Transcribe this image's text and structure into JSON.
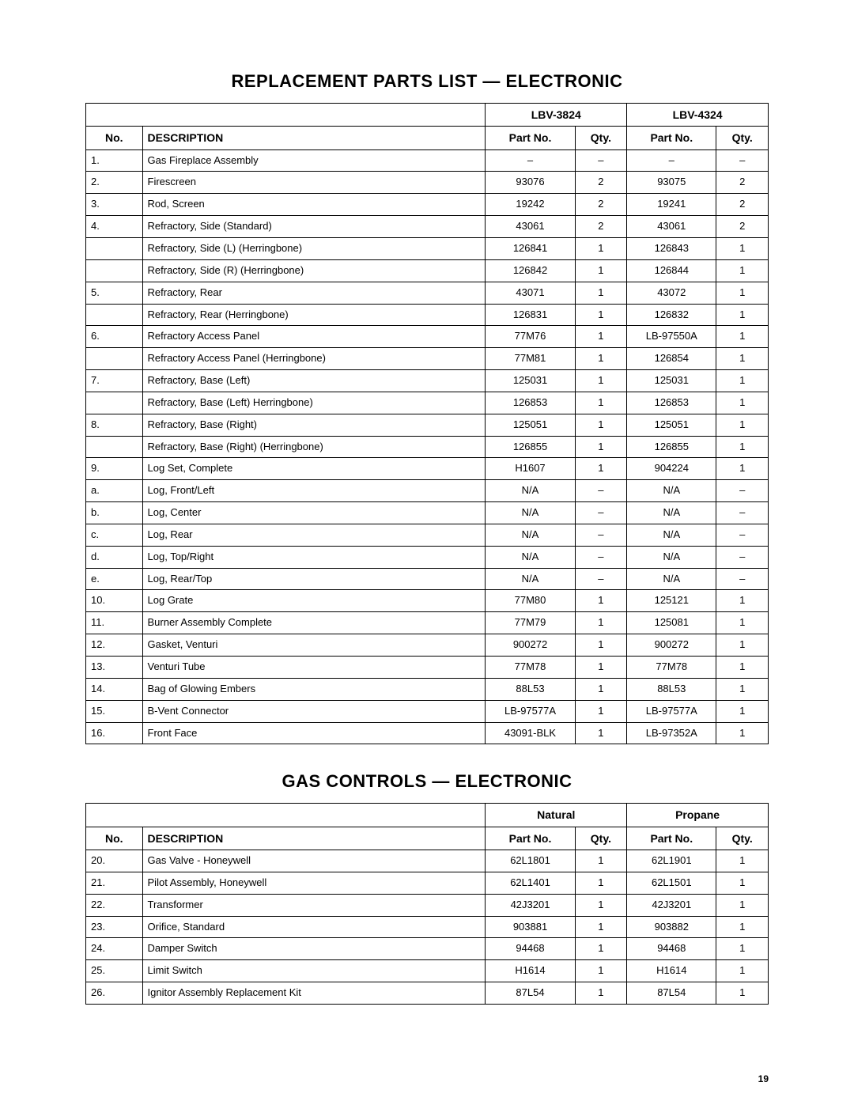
{
  "page_number": "19",
  "colors": {
    "text": "#000000",
    "background": "#ffffff",
    "border": "#000000"
  },
  "typography": {
    "heading_fontsize_pt": 16,
    "subhead_fontsize_pt": 10,
    "body_fontsize_pt": 9
  },
  "table1": {
    "title": "REPLACEMENT PARTS LIST — ELECTRONIC",
    "model_a": "LBV-3824",
    "model_b": "LBV-4324",
    "col_labels": {
      "no": "No.",
      "desc": "DESCRIPTION",
      "part": "Part No.",
      "qty": "Qty."
    },
    "rows": [
      {
        "no": "1.",
        "desc": "Gas Fireplace Assembly",
        "pa": "–",
        "qa": "–",
        "pb": "–",
        "qb": "–"
      },
      {
        "no": "2.",
        "desc": "Firescreen",
        "pa": "93076",
        "qa": "2",
        "pb": "93075",
        "qb": "2"
      },
      {
        "no": "3.",
        "desc": "Rod, Screen",
        "pa": "19242",
        "qa": "2",
        "pb": "19241",
        "qb": "2"
      },
      {
        "no": "4.",
        "desc": "Refractory, Side (Standard)",
        "pa": "43061",
        "qa": "2",
        "pb": "43061",
        "qb": "2"
      },
      {
        "no": "",
        "desc": "Refractory, Side (L) (Herringbone)",
        "pa": "126841",
        "qa": "1",
        "pb": "126843",
        "qb": "1"
      },
      {
        "no": "",
        "desc": "Refractory, Side (R) (Herringbone)",
        "pa": "126842",
        "qa": "1",
        "pb": "126844",
        "qb": "1"
      },
      {
        "no": "5.",
        "desc": "Refractory, Rear",
        "pa": "43071",
        "qa": "1",
        "pb": "43072",
        "qb": "1"
      },
      {
        "no": "",
        "desc": "Refractory, Rear (Herringbone)",
        "pa": "126831",
        "qa": "1",
        "pb": "126832",
        "qb": "1"
      },
      {
        "no": "6.",
        "desc": "Refractory Access Panel",
        "pa": "77M76",
        "qa": "1",
        "pb": "LB-97550A",
        "qb": "1"
      },
      {
        "no": "",
        "desc": "Refractory Access Panel (Herringbone)",
        "pa": "77M81",
        "qa": "1",
        "pb": "126854",
        "qb": "1"
      },
      {
        "no": "7.",
        "desc": "Refractory, Base (Left)",
        "pa": "125031",
        "qa": "1",
        "pb": "125031",
        "qb": "1"
      },
      {
        "no": "",
        "desc": "Refractory, Base (Left) Herringbone)",
        "pa": "126853",
        "qa": "1",
        "pb": "126853",
        "qb": "1"
      },
      {
        "no": "8.",
        "desc": "Refractory, Base (Right)",
        "pa": "125051",
        "qa": "1",
        "pb": "125051",
        "qb": "1"
      },
      {
        "no": "",
        "desc": "Refractory, Base (Right) (Herringbone)",
        "pa": "126855",
        "qa": "1",
        "pb": "126855",
        "qb": "1"
      },
      {
        "no": "9.",
        "desc": "Log Set, Complete",
        "pa": "H1607",
        "qa": "1",
        "pb": "904224",
        "qb": "1"
      },
      {
        "no": "a.",
        "desc": "Log, Front/Left",
        "pa": "N/A",
        "qa": "–",
        "pb": "N/A",
        "qb": "–"
      },
      {
        "no": "b.",
        "desc": "Log, Center",
        "pa": "N/A",
        "qa": "–",
        "pb": "N/A",
        "qb": "–"
      },
      {
        "no": "c.",
        "desc": "Log, Rear",
        "pa": "N/A",
        "qa": "–",
        "pb": "N/A",
        "qb": "–"
      },
      {
        "no": "d.",
        "desc": "Log, Top/Right",
        "pa": "N/A",
        "qa": "–",
        "pb": "N/A",
        "qb": "–"
      },
      {
        "no": "e.",
        "desc": "Log, Rear/Top",
        "pa": "N/A",
        "qa": "–",
        "pb": "N/A",
        "qb": "–"
      },
      {
        "no": "10.",
        "desc": "Log Grate",
        "pa": "77M80",
        "qa": "1",
        "pb": "125121",
        "qb": "1"
      },
      {
        "no": "11.",
        "desc": "Burner Assembly Complete",
        "pa": "77M79",
        "qa": "1",
        "pb": "125081",
        "qb": "1"
      },
      {
        "no": "12.",
        "desc": "Gasket, Venturi",
        "pa": "900272",
        "qa": "1",
        "pb": "900272",
        "qb": "1"
      },
      {
        "no": "13.",
        "desc": "Venturi Tube",
        "pa": "77M78",
        "qa": "1",
        "pb": "77M78",
        "qb": "1"
      },
      {
        "no": "14.",
        "desc": "Bag of Glowing Embers",
        "pa": "88L53",
        "qa": "1",
        "pb": "88L53",
        "qb": "1"
      },
      {
        "no": "15.",
        "desc": "B-Vent Connector",
        "pa": "LB-97577A",
        "qa": "1",
        "pb": "LB-97577A",
        "qb": "1"
      },
      {
        "no": "16.",
        "desc": "Front Face",
        "pa": "43091-BLK",
        "qa": "1",
        "pb": "LB-97352A",
        "qb": "1"
      }
    ]
  },
  "table2": {
    "title": "GAS CONTROLS — ELECTRONIC",
    "model_a": "Natural",
    "model_b": "Propane",
    "col_labels": {
      "no": "No.",
      "desc": "DESCRIPTION",
      "part": "Part No.",
      "qty": "Qty."
    },
    "rows": [
      {
        "no": "20.",
        "desc": "Gas Valve - Honeywell",
        "pa": "62L1801",
        "qa": "1",
        "pb": "62L1901",
        "qb": "1"
      },
      {
        "no": "21.",
        "desc": "Pilot Assembly, Honeywell",
        "pa": "62L1401",
        "qa": "1",
        "pb": "62L1501",
        "qb": "1"
      },
      {
        "no": "22.",
        "desc": "Transformer",
        "pa": "42J3201",
        "qa": "1",
        "pb": "42J3201",
        "qb": "1"
      },
      {
        "no": "23.",
        "desc": "Orifice, Standard",
        "pa": "903881",
        "qa": "1",
        "pb": "903882",
        "qb": "1"
      },
      {
        "no": "24.",
        "desc": "Damper Switch",
        "pa": "94468",
        "qa": "1",
        "pb": "94468",
        "qb": "1"
      },
      {
        "no": "25.",
        "desc": "Limit Switch",
        "pa": "H1614",
        "qa": "1",
        "pb": "H1614",
        "qb": "1"
      },
      {
        "no": "26.",
        "desc": "Ignitor Assembly Replacement Kit",
        "pa": "87L54",
        "qa": "1",
        "pb": "87L54",
        "qb": "1"
      }
    ]
  }
}
